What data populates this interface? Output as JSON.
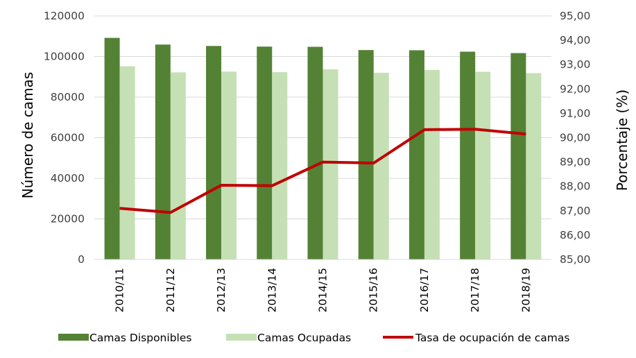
{
  "chart_data": {
    "type": "bar",
    "categories": [
      "2010/11",
      "2011/12",
      "2012/13",
      "2013/14",
      "2014/15",
      "2015/16",
      "2016/17",
      "2017/18",
      "2018/19"
    ],
    "series": [
      {
        "name": "Camas Disponibles",
        "type": "bar",
        "axis": "left",
        "color": "#548235",
        "values": [
          109200,
          105900,
          105200,
          104900,
          104800,
          103200,
          103100,
          102400,
          101700
        ]
      },
      {
        "name": "Camas Ocupadas",
        "type": "bar",
        "axis": "left",
        "color": "#c5e0b4",
        "values": [
          95200,
          92200,
          92600,
          92300,
          93700,
          92000,
          93400,
          92500,
          91800
        ]
      },
      {
        "name": "Tasa de ocupación de camas",
        "type": "line",
        "axis": "right",
        "color": "#c00000",
        "values": [
          87.1,
          86.93,
          88.05,
          88.03,
          89.0,
          88.96,
          90.33,
          90.35,
          90.15
        ]
      }
    ],
    "ylabel": "Número de camas",
    "ylabel_right": "Porcentaje (%)",
    "ylim": [
      0,
      120000
    ],
    "ylim_right": [
      85,
      95
    ],
    "yticks": [
      "0",
      "20000",
      "40000",
      "60000",
      "80000",
      "100000",
      "120000"
    ],
    "yticks_right": [
      "85,00",
      "86,00",
      "87,00",
      "88,00",
      "89,00",
      "90,00",
      "91,00",
      "92,00",
      "93,00",
      "94,00",
      "95,00"
    ],
    "grid": true,
    "legend": "bottom"
  }
}
